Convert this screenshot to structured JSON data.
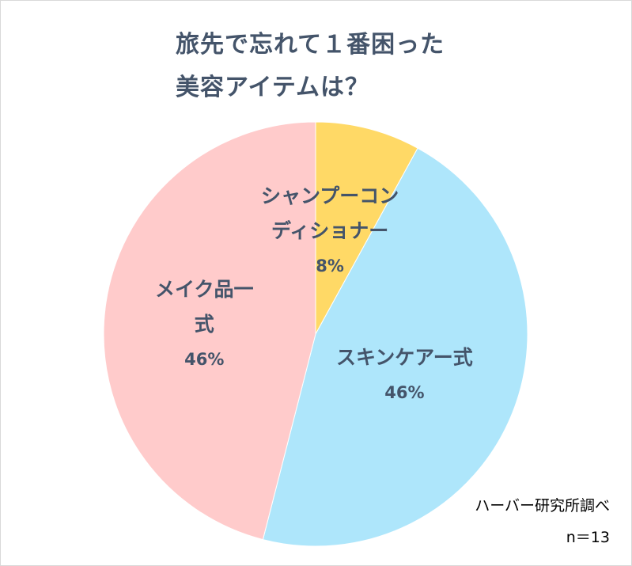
{
  "chart_data": {
    "type": "pie",
    "title_lines": [
      "旅先で忘れて１番困った",
      "美容アイテムは？"
    ],
    "slices": [
      {
        "label": "シャンプーコンディショナー",
        "label_lines": [
          "シャンプーコン",
          "ディショナー"
        ],
        "value": 8,
        "value_label": "8%",
        "color": "#ffd966"
      },
      {
        "label": "スキンケアー式",
        "label_lines": [
          "スキンケアー式"
        ],
        "value": 46,
        "value_label": "46%",
        "color": "#aee6fb"
      },
      {
        "label": "メイク品一式",
        "label_lines": [
          "メイク品一",
          "式"
        ],
        "value": 46,
        "value_label": "46%",
        "color": "#ffcbcb"
      }
    ],
    "source": "ハーバー研究所調べ",
    "n_label": "n＝13"
  }
}
